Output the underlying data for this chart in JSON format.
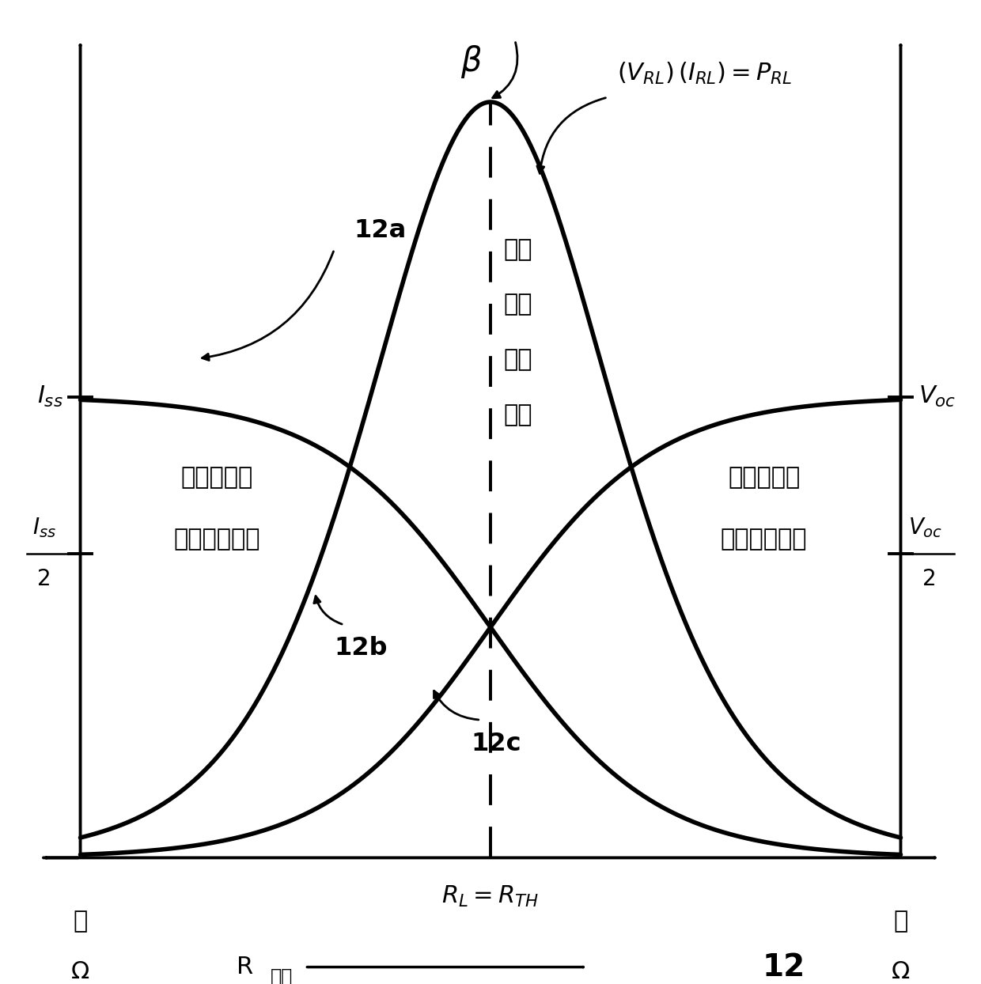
{
  "fig_width": 12.4,
  "fig_height": 12.44,
  "dpi": 100,
  "curve_color": "black",
  "curve_lw": 4.0,
  "axis_lw": 2.8,
  "dashed_lw": 2.8,
  "beta_label": "β",
  "equation_label_parts": [
    "$(V_{RL})$",
    "$(I_{RL})$",
    "$= P_{RL}$"
  ],
  "center_label_lines": [
    "最大",
    "功率",
    "传输",
    "感测"
  ],
  "iss_label": "$I_{ss}$",
  "voc_label": "$V_{oc}$",
  "iss_half_num": "$I_{ss}$",
  "iss_half_den": "2",
  "voc_half_num": "$V_{oc}$",
  "voc_half_den": "2",
  "low_imp_line1": "低输入阻抗",
  "low_imp_line2": "（电流感测）",
  "high_imp_line1": "高输入阻抗",
  "high_imp_line2": "（电压感测）",
  "low_label": "低",
  "high_label": "高",
  "omega": "Ω",
  "x_axis_main": "R",
  "x_axis_sub": "负载",
  "center_x_label": "$R_L = R_{TH}$",
  "figure_number": "12",
  "label_12a": "12a",
  "label_12b": "12b",
  "label_12c": "12c",
  "background_color": "white"
}
